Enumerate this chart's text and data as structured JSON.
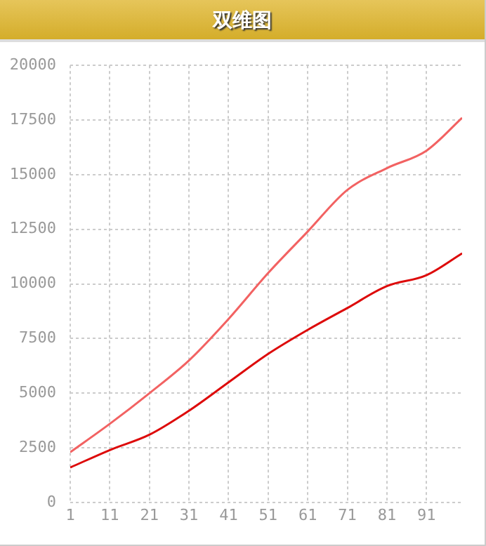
{
  "chart_data": {
    "type": "line",
    "title": "双维图",
    "x": [
      1,
      11,
      21,
      31,
      41,
      51,
      61,
      71,
      81,
      91,
      100
    ],
    "series": [
      {
        "color": "#f26262",
        "values": [
          2300,
          3600,
          5000,
          6500,
          8400,
          10500,
          12400,
          14300,
          15300,
          16100,
          17600
        ]
      },
      {
        "color": "#dd0a0a",
        "values": [
          1600,
          2400,
          3100,
          4200,
          5500,
          6800,
          7900,
          8900,
          9900,
          10400,
          11400
        ]
      }
    ],
    "xlim": [
      1,
      100
    ],
    "xticks": [
      1,
      11,
      21,
      31,
      41,
      51,
      61,
      71,
      81,
      91
    ],
    "ylim": [
      0,
      20000
    ],
    "yticks": [
      0,
      2500,
      5000,
      7500,
      10000,
      12500,
      15000,
      17500,
      20000
    ],
    "grid": true,
    "legend": false,
    "marker": "none",
    "line_style": "solid"
  }
}
